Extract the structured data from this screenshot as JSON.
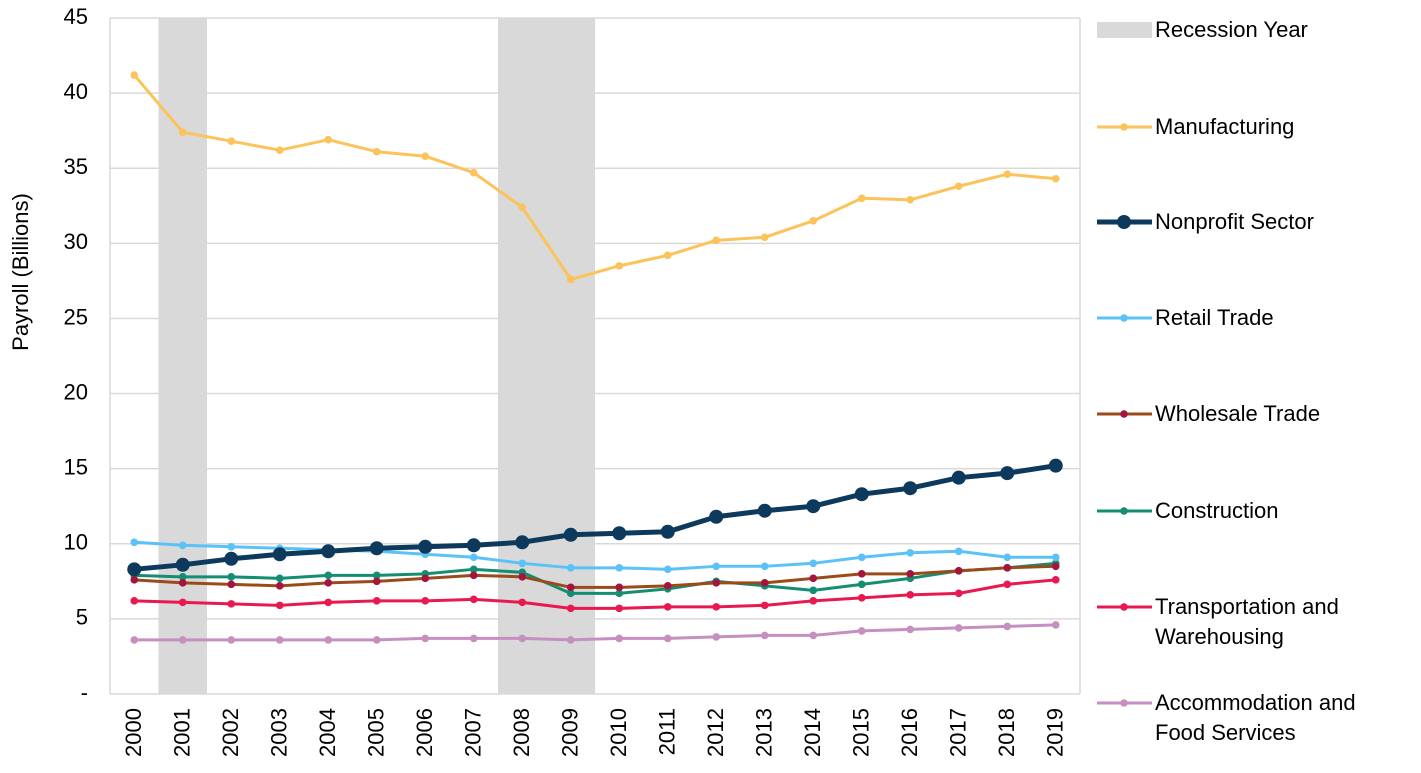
{
  "chart_data": {
    "type": "line",
    "y_label": "Payroll (Billions)",
    "categories": [
      "2000",
      "2001",
      "2002",
      "2003",
      "2004",
      "2005",
      "2006",
      "2007",
      "2008",
      "2009",
      "2010",
      "2011",
      "2012",
      "2013",
      "2014",
      "2015",
      "2016",
      "2017",
      "2018",
      "2019"
    ],
    "recession": {
      "name": "Recession Year",
      "color": "#d9d9d9",
      "categories": [
        "2001",
        "2008",
        "2009"
      ]
    },
    "series": [
      {
        "name": "Manufacturing",
        "color": "#fbc35a",
        "values": [
          41.2,
          37.4,
          36.8,
          36.2,
          36.9,
          36.1,
          35.8,
          34.7,
          32.4,
          27.6,
          28.5,
          29.2,
          30.2,
          30.4,
          31.5,
          33.0,
          32.9,
          33.8,
          34.6,
          34.3
        ]
      },
      {
        "name": "Nonprofit Sector",
        "color": "#0d3a5c",
        "emphasis": true,
        "values": [
          8.3,
          8.6,
          9.0,
          9.3,
          9.5,
          9.7,
          9.8,
          9.9,
          10.1,
          10.6,
          10.7,
          10.8,
          11.8,
          12.2,
          12.5,
          13.3,
          13.7,
          14.4,
          14.7,
          15.2
        ]
      },
      {
        "name": "Retail Trade",
        "color": "#5bc2f7",
        "values": [
          10.1,
          9.9,
          9.8,
          9.7,
          9.6,
          9.5,
          9.3,
          9.1,
          8.7,
          8.4,
          8.4,
          8.3,
          8.5,
          8.5,
          8.7,
          9.1,
          9.4,
          9.5,
          9.1,
          9.1
        ]
      },
      {
        "name": "Wholesale Trade",
        "color": "#9b4a1a",
        "marker_color": "#a3153e",
        "values": [
          7.6,
          7.4,
          7.3,
          7.2,
          7.4,
          7.5,
          7.7,
          7.9,
          7.8,
          7.1,
          7.1,
          7.2,
          7.4,
          7.4,
          7.7,
          8.0,
          8.0,
          8.2,
          8.4,
          8.5
        ]
      },
      {
        "name": "Construction",
        "color": "#138e72",
        "values": [
          7.9,
          7.8,
          7.8,
          7.7,
          7.9,
          7.9,
          8.0,
          8.3,
          8.1,
          6.7,
          6.7,
          7.0,
          7.5,
          7.2,
          6.9,
          7.3,
          7.7,
          8.2,
          8.4,
          8.7
        ]
      },
      {
        "name": "Transportation and Warehousing",
        "color": "#e8194f",
        "values": [
          6.2,
          6.1,
          6.0,
          5.9,
          6.1,
          6.2,
          6.2,
          6.3,
          6.1,
          5.7,
          5.7,
          5.8,
          5.8,
          5.9,
          6.2,
          6.4,
          6.6,
          6.7,
          7.3,
          7.6
        ]
      },
      {
        "name": "Accommodation and Food Services",
        "color": "#c58fbf",
        "values": [
          3.6,
          3.6,
          3.6,
          3.6,
          3.6,
          3.6,
          3.7,
          3.7,
          3.7,
          3.6,
          3.7,
          3.7,
          3.8,
          3.9,
          3.9,
          4.2,
          4.3,
          4.4,
          4.5,
          4.6
        ]
      }
    ],
    "ylim": [
      0,
      45
    ],
    "yticks": [
      {
        "value": 0,
        "label": "-"
      },
      5,
      10,
      15,
      20,
      25,
      30,
      35,
      40,
      45
    ],
    "grid": true
  }
}
